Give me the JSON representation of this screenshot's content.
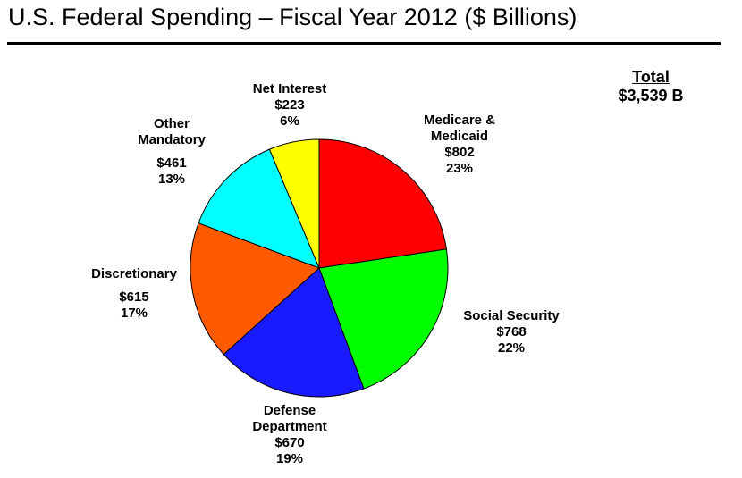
{
  "title": "U.S. Federal Spending – Fiscal Year 2012 ($ Billions)",
  "total": {
    "label": "Total",
    "value": "$3,539 B"
  },
  "chart_data": {
    "type": "pie",
    "title": "U.S. Federal Spending – Fiscal Year 2012 ($ Billions)",
    "total": 3539,
    "unit": "$ Billions",
    "start_angle_deg": 0,
    "direction": "clockwise",
    "slices": [
      {
        "label_lines": [
          "Medicare &",
          "Medicaid"
        ],
        "value": 802,
        "value_label": "$802",
        "percent_label": "23%",
        "color": "#ff0000"
      },
      {
        "label_lines": [
          "Social Security"
        ],
        "value": 768,
        "value_label": "$768",
        "percent_label": "22%",
        "color": "#00ff00"
      },
      {
        "label_lines": [
          "Defense",
          "Department"
        ],
        "value": 670,
        "value_label": "$670",
        "percent_label": "19%",
        "color": "#1a1aff"
      },
      {
        "label_lines": [
          "Discretionary"
        ],
        "value": 615,
        "value_label": "$615",
        "percent_label": "17%",
        "color": "#ff5a00"
      },
      {
        "label_lines": [
          "Other",
          "Mandatory"
        ],
        "value": 461,
        "value_label": "$461",
        "percent_label": "13%",
        "color": "#00ffff"
      },
      {
        "label_lines": [
          "Net Interest"
        ],
        "value": 223,
        "value_label": "$223",
        "percent_label": "6%",
        "color": "#ffff00"
      }
    ]
  }
}
